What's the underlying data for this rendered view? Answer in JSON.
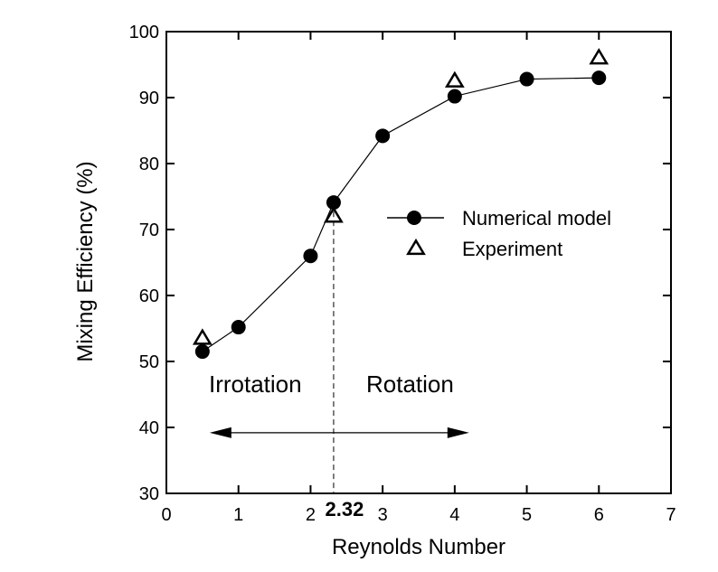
{
  "chart_data": {
    "type": "line",
    "title": "",
    "xlabel": "Reynolds Number",
    "ylabel": "Mixing Efficiency (%)",
    "xlim": [
      0,
      7
    ],
    "ylim": [
      30,
      100
    ],
    "xticks": [
      0,
      1,
      2,
      3,
      4,
      5,
      6,
      7
    ],
    "yticks": [
      30,
      40,
      50,
      60,
      70,
      80,
      90,
      100
    ],
    "grid": false,
    "legend_position": "right",
    "series": [
      {
        "name": "Numerical model",
        "style": "filled-circle-line",
        "x": [
          0.5,
          1,
          2,
          2.32,
          3,
          4,
          5,
          6
        ],
        "y": [
          51.5,
          55.2,
          66.0,
          74.1,
          84.2,
          90.2,
          92.8,
          93.0
        ]
      },
      {
        "name": "Experiment",
        "style": "open-triangle",
        "x": [
          0.5,
          2.32,
          4,
          6
        ],
        "y": [
          53.5,
          72.0,
          92.5,
          96.0
        ]
      }
    ],
    "annotations": {
      "threshold_label": "2.32",
      "threshold_x": 2.32,
      "region_left": "Irrotation",
      "region_right": "Rotation",
      "arrow_range": [
        0.6,
        4.2
      ],
      "arrow_y": 39.2
    }
  }
}
